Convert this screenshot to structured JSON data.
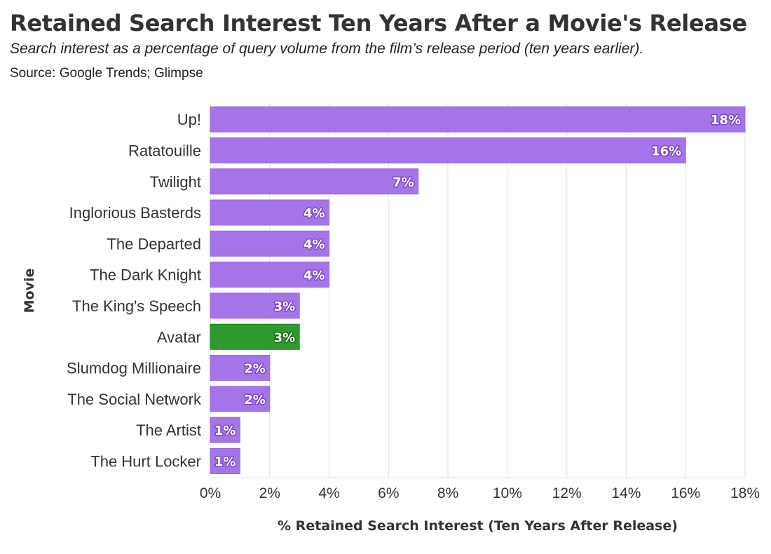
{
  "header": {
    "title": "Retained Search Interest Ten Years After a Movie's Release",
    "subtitle": "Search interest as a percentage of query volume from the film’s release period (ten years earlier).",
    "source": "Source: Google Trends; Glimpse"
  },
  "colors": {
    "bar": "#a474e8",
    "bar_stroke": "#9a66e0",
    "highlight": "#2e9a2e",
    "highlight_stroke": "#247d24",
    "grid": "#e6e6e6",
    "label_outline_default": "#7c46c9",
    "label_outline_highlight": "#1b6b1b"
  },
  "chart_data": {
    "type": "bar",
    "orientation": "horizontal",
    "xlabel": "% Retained Search Interest (Ten Years After Release)",
    "ylabel": "Movie",
    "xlim": [
      0,
      18
    ],
    "xticks": [
      0,
      2,
      4,
      6,
      8,
      10,
      12,
      14,
      16,
      18
    ],
    "xtick_labels": [
      "0%",
      "2%",
      "4%",
      "6%",
      "8%",
      "10%",
      "12%",
      "14%",
      "16%",
      "18%"
    ],
    "grid": true,
    "categories": [
      "Up!",
      "Ratatouille",
      "Twilight",
      "Inglorious Basterds",
      "The Departed",
      "The Dark Knight",
      "The King's Speech",
      "Avatar",
      "Slumdog Millionaire",
      "The Social Network",
      "The Artist",
      "The Hurt Locker"
    ],
    "values": [
      18,
      16,
      7,
      4,
      4,
      4,
      3,
      3,
      2,
      2,
      1,
      1
    ],
    "data_labels": [
      "18%",
      "16%",
      "7%",
      "4%",
      "4%",
      "4%",
      "3%",
      "3%",
      "2%",
      "2%",
      "1%",
      "1%"
    ],
    "highlight": "Avatar"
  }
}
